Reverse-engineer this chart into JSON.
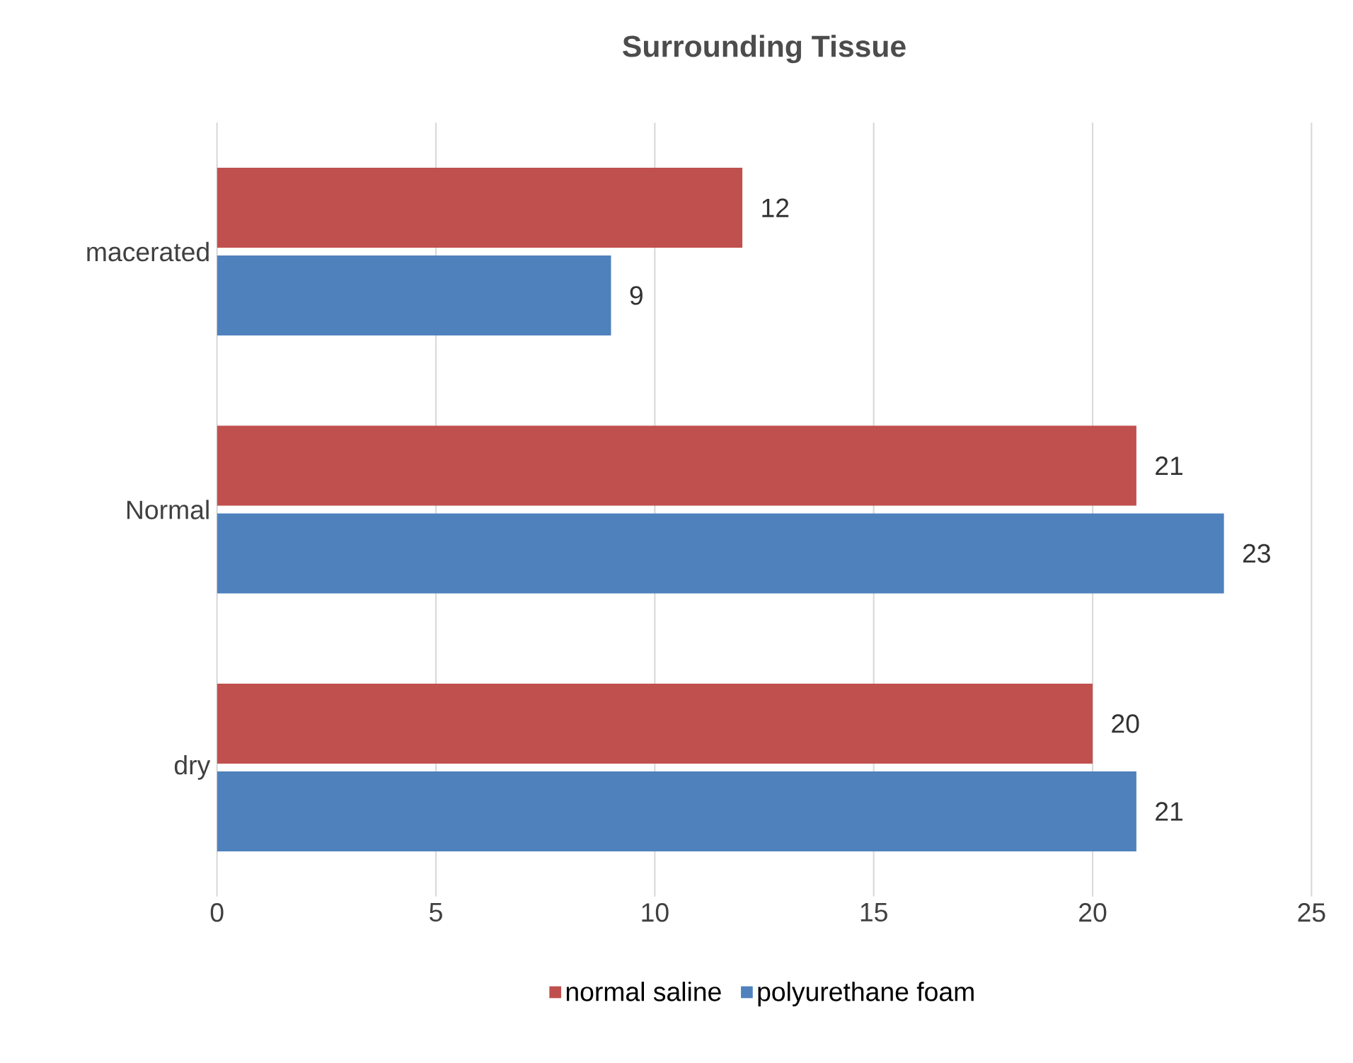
{
  "chart_data": {
    "type": "bar",
    "orientation": "horizontal",
    "title": "Surrounding Tissue",
    "categories": [
      "macerated",
      "Normal",
      "dry"
    ],
    "series": [
      {
        "name": "normal saline",
        "color": "#c0504d",
        "values": [
          12,
          21,
          20
        ]
      },
      {
        "name": "polyurethane foam",
        "color": "#4f81bd",
        "values": [
          9,
          23,
          21
        ]
      }
    ],
    "xlim": [
      0,
      25
    ],
    "xticks": [
      0,
      5,
      10,
      15,
      20,
      25
    ],
    "grid": "x",
    "data_labels": true,
    "legend": "bottom"
  }
}
